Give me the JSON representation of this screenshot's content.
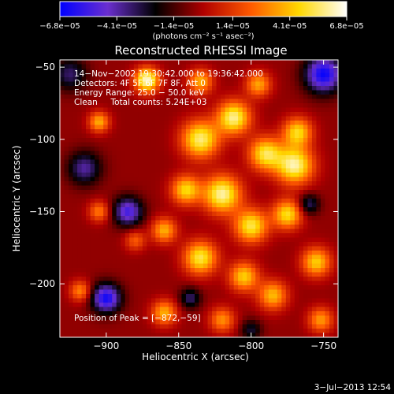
{
  "chart_data": {
    "type": "heatmap",
    "title": "Reconstructed RHESSI Image",
    "xlabel": "Heliocentric X (arcsec)",
    "ylabel": "Heliocentric Y (arcsec)",
    "xlim": [
      -932,
      -740
    ],
    "ylim": [
      -237,
      -45
    ],
    "x_ticks": [
      -900,
      -850,
      -800,
      -750
    ],
    "y_ticks": [
      -200,
      -150,
      -100,
      -50
    ],
    "x_tick_labels": [
      "−900",
      "−850",
      "−800",
      "−750"
    ],
    "y_tick_labels": [
      "−200",
      "−150",
      "−100",
      "−50"
    ],
    "colorbar": {
      "range": [
        -6.8e-05,
        6.8e-05
      ],
      "tick_values": [
        -6.8e-05,
        -4.1e-05,
        -1.4e-05,
        1.4e-05,
        4.1e-05,
        6.8e-05
      ],
      "tick_labels": [
        "−6.8e−05",
        "−4.1e−05",
        "−1.4e−05",
        "1.4e−05",
        "4.1e−05",
        "6.8e−05"
      ],
      "unit_label": "(photons cm⁻² s⁻¹ asec⁻²)",
      "colors": [
        "#0000ff",
        "#6a2fd0",
        "#000000",
        "#b00000",
        "#ff5a00",
        "#ffd800",
        "#ffffff"
      ]
    },
    "annotations": {
      "time": "14−Nov−2002 19:30:42.000 to 19:36:42.000",
      "detectors": "Detectors: 4F 5F 6F 7F 8F, Att 0",
      "energy": "Energy Range: 25.0 − 50.0 keV",
      "clean": "Clean     Total counts: 5.24E+03",
      "position": "Position of Peak = [−872,−59]"
    },
    "timestamp": "3−Jul−2013 12:54",
    "sources": [
      {
        "x": -835,
        "y": -100,
        "amp": 6e-05,
        "sigma": 9
      },
      {
        "x": -812,
        "y": -85,
        "amp": 6.2e-05,
        "sigma": 8
      },
      {
        "x": -790,
        "y": -110,
        "amp": 5.5e-05,
        "sigma": 8
      },
      {
        "x": -770,
        "y": -118,
        "amp": 6.4e-05,
        "sigma": 9
      },
      {
        "x": -768,
        "y": -95,
        "amp": 5e-05,
        "sigma": 7
      },
      {
        "x": -820,
        "y": -138,
        "amp": 6.4e-05,
        "sigma": 9
      },
      {
        "x": -845,
        "y": -135,
        "amp": 5e-05,
        "sigma": 7
      },
      {
        "x": -800,
        "y": -160,
        "amp": 5.6e-05,
        "sigma": 8
      },
      {
        "x": -775,
        "y": -152,
        "amp": 5.2e-05,
        "sigma": 7
      },
      {
        "x": -860,
        "y": -163,
        "amp": 4.2e-05,
        "sigma": 6
      },
      {
        "x": -835,
        "y": -182,
        "amp": 5.6e-05,
        "sigma": 8
      },
      {
        "x": -805,
        "y": -195,
        "amp": 4.8e-05,
        "sigma": 7
      },
      {
        "x": -755,
        "y": -185,
        "amp": 4.8e-05,
        "sigma": 7
      },
      {
        "x": -785,
        "y": -208,
        "amp": 4.4e-05,
        "sigma": 7
      },
      {
        "x": -860,
        "y": -220,
        "amp": 4.2e-05,
        "sigma": 6
      },
      {
        "x": -820,
        "y": -225,
        "amp": 3.6e-05,
        "sigma": 6
      },
      {
        "x": -752,
        "y": -225,
        "amp": 3.8e-05,
        "sigma": 6
      },
      {
        "x": -872,
        "y": -59,
        "amp": 6.8e-05,
        "sigma": 6
      },
      {
        "x": -835,
        "y": -60,
        "amp": 4.2e-05,
        "sigma": 6
      },
      {
        "x": -795,
        "y": -62,
        "amp": 4e-05,
        "sigma": 6
      },
      {
        "x": -905,
        "y": -88,
        "amp": 4.2e-05,
        "sigma": 5
      },
      {
        "x": -905,
        "y": -150,
        "amp": 3.2e-05,
        "sigma": 5
      },
      {
        "x": -918,
        "y": -205,
        "amp": 3.4e-05,
        "sigma": 5
      },
      {
        "x": -880,
        "y": -170,
        "amp": 2.6e-05,
        "sigma": 5
      },
      {
        "x": -900,
        "y": -210,
        "amp": -6e-05,
        "sigma": 7
      },
      {
        "x": -885,
        "y": -150,
        "amp": -5e-05,
        "sigma": 7
      },
      {
        "x": -750,
        "y": -55,
        "amp": -6.2e-05,
        "sigma": 9
      },
      {
        "x": -915,
        "y": -120,
        "amp": -3.6e-05,
        "sigma": 8
      },
      {
        "x": -925,
        "y": -55,
        "amp": -3e-05,
        "sigma": 8
      },
      {
        "x": -760,
        "y": -145,
        "amp": -3e-05,
        "sigma": 5
      },
      {
        "x": -842,
        "y": -210,
        "amp": -3e-05,
        "sigma": 5
      },
      {
        "x": -800,
        "y": -232,
        "amp": -2.4e-05,
        "sigma": 5
      }
    ]
  }
}
